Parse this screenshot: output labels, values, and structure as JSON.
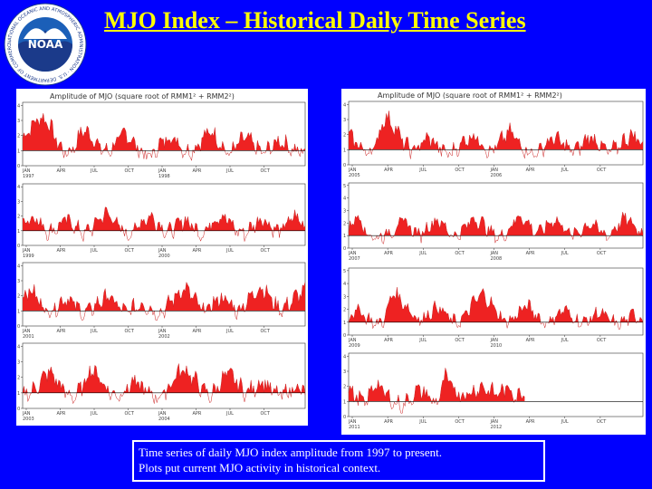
{
  "slide": {
    "title": "MJO Index – Historical Daily Time Series",
    "caption_line1": "Time series of daily MJO index amplitude from 1997 to present.",
    "caption_line2": "Plots put current MJO activity in historical context.",
    "logo_text": "NOAA",
    "logo_ring_text": "NATIONAL OCEANIC AND ATMOSPHERIC ADMINISTRATION · U.S. DEPARTMENT OF COMMERCE ·"
  },
  "colors": {
    "background": "#0000ff",
    "title": "#ffff00",
    "fill": "#ee2222",
    "line": "#cc2222",
    "threshold": "#000000"
  },
  "chart_data": [
    {
      "type": "area",
      "title": "Amplitude of MJO (square root of RMM1² + RMM2²)",
      "months": [
        "JAN",
        "APR",
        "JUL",
        "OCT",
        "JAN",
        "APR",
        "JUL",
        "OCT"
      ],
      "years": [
        "1997",
        "1998"
      ],
      "yticks": [
        0,
        1,
        2,
        3,
        4
      ],
      "ylim": [
        0,
        4.2
      ],
      "threshold": 1,
      "amplitude_profile": [
        1.8,
        2.6,
        3.2,
        2.9,
        1.6,
        0.8,
        1.2,
        2.4,
        2.0,
        1.2,
        0.9,
        1.6,
        2.2,
        1.5,
        0.8,
        0.6,
        1.4,
        1.9,
        1.7,
        0.9,
        1.1,
        1.8,
        2.3,
        1.6,
        0.7,
        1.3,
        1.9,
        1.4,
        0.8,
        1.2,
        1.7,
        1.3,
        0.9,
        1.0
      ]
    },
    {
      "type": "area",
      "title": "",
      "months": [
        "JAN",
        "APR",
        "JUL",
        "OCT",
        "JAN",
        "APR",
        "JUL",
        "OCT"
      ],
      "years": [
        "1999",
        "2000"
      ],
      "yticks": [
        0,
        1,
        2,
        3,
        4
      ],
      "ylim": [
        0,
        4.2
      ],
      "threshold": 1,
      "amplitude_profile": [
        1.5,
        2.0,
        1.6,
        0.9,
        1.2,
        1.8,
        1.4,
        0.8,
        1.1,
        1.9,
        2.2,
        1.5,
        0.7,
        1.0,
        1.7,
        2.0,
        1.4,
        0.9,
        1.3,
        1.8,
        1.2,
        0.8,
        1.5,
        2.1,
        1.7,
        1.0,
        0.8,
        1.4,
        1.9,
        1.3,
        0.9,
        1.6,
        2.0,
        1.2
      ]
    },
    {
      "type": "area",
      "title": "",
      "months": [
        "JAN",
        "APR",
        "JUL",
        "OCT",
        "JAN",
        "APR",
        "JUL",
        "OCT"
      ],
      "years": [
        "2001",
        "2002"
      ],
      "yticks": [
        0,
        1,
        2,
        3,
        4
      ],
      "ylim": [
        0,
        4.2
      ],
      "threshold": 1,
      "amplitude_profile": [
        2.0,
        2.4,
        1.6,
        0.9,
        1.3,
        1.9,
        1.5,
        0.8,
        1.1,
        1.6,
        2.0,
        1.4,
        0.9,
        1.2,
        1.5,
        1.1,
        0.8,
        1.4,
        2.1,
        2.5,
        1.8,
        1.0,
        1.3,
        1.9,
        1.6,
        1.0,
        1.5,
        2.2,
        2.6,
        1.8,
        1.1,
        1.4,
        2.0,
        2.3
      ]
    },
    {
      "type": "area",
      "title": "",
      "months": [
        "JAN",
        "APR",
        "JUL",
        "OCT",
        "JAN",
        "APR",
        "JUL",
        "OCT"
      ],
      "years": [
        "2003",
        "2004"
      ],
      "yticks": [
        0,
        1,
        2,
        3,
        4
      ],
      "ylim": [
        0,
        4.2
      ],
      "threshold": 1,
      "amplitude_profile": [
        0.8,
        1.1,
        1.6,
        2.4,
        1.8,
        1.0,
        0.7,
        1.4,
        2.6,
        2.0,
        1.1,
        0.8,
        1.2,
        1.7,
        1.3,
        0.9,
        0.7,
        1.3,
        2.2,
        2.5,
        1.9,
        1.2,
        0.8,
        1.6,
        2.3,
        1.7,
        1.0,
        1.3,
        1.8,
        1.2,
        0.8,
        1.1,
        1.4,
        0.9
      ]
    },
    {
      "type": "area",
      "title": "Amplitude of MJO (square root of RMM1² + RMM2²)",
      "months": [
        "JAN",
        "APR",
        "JUL",
        "OCT",
        "JAN",
        "APR",
        "JUL",
        "OCT"
      ],
      "years": [
        "2005",
        "2006"
      ],
      "yticks": [
        0,
        1,
        2,
        3,
        4
      ],
      "ylim": [
        0,
        4.2
      ],
      "threshold": 1,
      "amplitude_profile": [
        1.9,
        1.4,
        0.8,
        1.2,
        3.2,
        2.7,
        1.6,
        0.9,
        1.3,
        1.8,
        1.2,
        0.7,
        1.0,
        1.6,
        2.0,
        1.4,
        0.8,
        1.5,
        2.2,
        1.6,
        0.9,
        0.7,
        1.3,
        1.8,
        1.4,
        0.9,
        1.2,
        1.9,
        1.5,
        0.8,
        1.1,
        1.7,
        2.0,
        1.3
      ]
    },
    {
      "type": "area",
      "title": "",
      "months": [
        "JAN",
        "APR",
        "JUL",
        "OCT",
        "JAN",
        "APR",
        "JUL",
        "OCT"
      ],
      "years": [
        "2007",
        "2008"
      ],
      "yticks": [
        0,
        1,
        2,
        3,
        4,
        5
      ],
      "ylim": [
        0,
        5.2
      ],
      "threshold": 1,
      "amplitude_profile": [
        1.4,
        2.8,
        1.2,
        0.8,
        1.0,
        1.4,
        2.2,
        1.6,
        1.0,
        1.8,
        2.3,
        1.5,
        0.9,
        1.6,
        2.4,
        2.0,
        1.2,
        0.8,
        1.5,
        2.6,
        2.1,
        1.2,
        1.6,
        2.3,
        1.8,
        1.0,
        1.4,
        2.0,
        1.5,
        0.9,
        1.7,
        2.4,
        1.8,
        1.1
      ]
    },
    {
      "type": "area",
      "title": "",
      "months": [
        "JAN",
        "APR",
        "JUL",
        "OCT",
        "JAN",
        "APR",
        "JUL",
        "OCT"
      ],
      "years": [
        "2009",
        "2010"
      ],
      "yticks": [
        0,
        1,
        2,
        3,
        4,
        5
      ],
      "ylim": [
        0,
        5.2
      ],
      "threshold": 1,
      "amplitude_profile": [
        1.3,
        2.0,
        1.4,
        0.8,
        1.2,
        3.4,
        2.6,
        1.8,
        1.1,
        1.7,
        2.2,
        1.5,
        0.9,
        1.4,
        2.5,
        3.2,
        2.4,
        1.4,
        1.0,
        1.7,
        2.3,
        1.6,
        0.9,
        1.3,
        2.0,
        1.5,
        0.9,
        1.2,
        1.8,
        1.3,
        0.8,
        1.1,
        1.6,
        1.2
      ]
    },
    {
      "type": "area",
      "title": "",
      "months": [
        "JAN",
        "APR",
        "JUL",
        "OCT",
        "JAN",
        "APR",
        "JUL",
        "OCT"
      ],
      "years": [
        "2011",
        "2012"
      ],
      "yticks": [
        0,
        1,
        2,
        3,
        4
      ],
      "ylim": [
        0,
        4.2
      ],
      "threshold": 1,
      "amplitude_profile": [
        1.8,
        1.2,
        0.9,
        2.3,
        1.6,
        1.0,
        0.7,
        1.2,
        1.8,
        1.4,
        0.8,
        2.6,
        1.8,
        1.4,
        1.6,
        2.0,
        1.7,
        1.5,
        1.9,
        1.4,
        1.6
      ]
    }
  ]
}
